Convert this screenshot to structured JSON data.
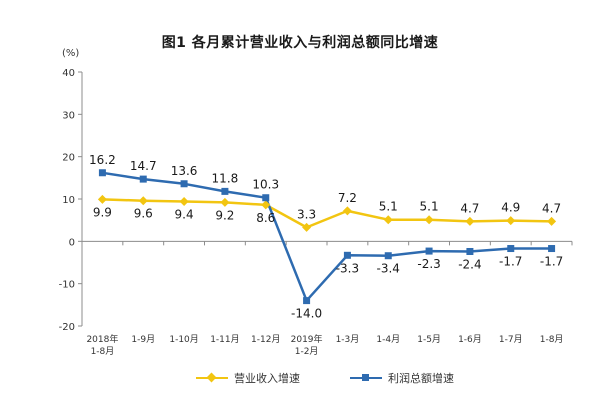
{
  "title": "图1  各月累计营业收入与利润总额同比增速",
  "chart_data": {
    "type": "line",
    "y_unit": "(%)",
    "ylim": [
      -20,
      40
    ],
    "yticks": [
      -20,
      -10,
      0,
      10,
      20,
      30,
      40
    ],
    "categories": [
      [
        "2018年",
        "1-8月"
      ],
      [
        "1-9月"
      ],
      [
        "1-10月"
      ],
      [
        "1-11月"
      ],
      [
        "1-12月"
      ],
      [
        "2019年",
        "1-2月"
      ],
      [
        "1-3月"
      ],
      [
        "1-4月"
      ],
      [
        "1-5月"
      ],
      [
        "1-6月"
      ],
      [
        "1-7月"
      ],
      [
        "1-8月"
      ]
    ],
    "series": [
      {
        "name": "营业收入增速",
        "color": "#f2c511",
        "marker": "diamond",
        "values": [
          9.9,
          9.6,
          9.4,
          9.2,
          8.6,
          3.3,
          7.2,
          5.1,
          5.1,
          4.7,
          4.9,
          4.7
        ],
        "labels": [
          "9.9",
          "9.6",
          "9.4",
          "9.2",
          "8.6",
          "3.3",
          "7.2",
          "5.1",
          "5.1",
          "4.7",
          "4.9",
          "4.7"
        ]
      },
      {
        "name": "利润总额增速",
        "color": "#2e6bb0",
        "marker": "square",
        "values": [
          16.2,
          14.7,
          13.6,
          11.8,
          10.3,
          -14.0,
          -3.3,
          -3.4,
          -2.3,
          -2.4,
          -1.7,
          -1.7
        ],
        "labels": [
          "16.2",
          "14.7",
          "13.6",
          "11.8",
          "10.3",
          "-14.0",
          "-3.3",
          "-3.4",
          "-2.3",
          "-2.4",
          "-1.7",
          "-1.7"
        ]
      }
    ],
    "grid": false,
    "legend": "bottom"
  }
}
